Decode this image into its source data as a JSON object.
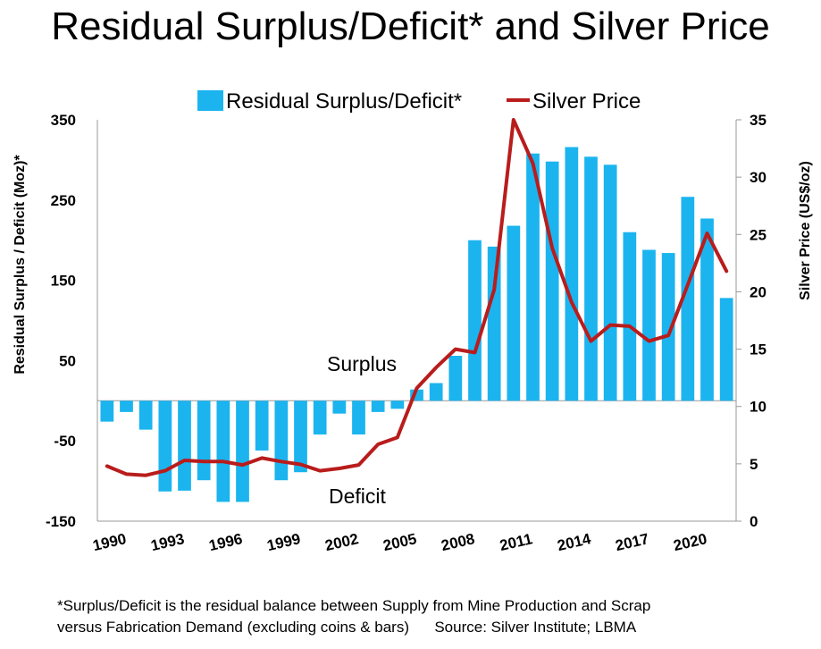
{
  "title": "Residual Surplus/Deficit* and Silver Price",
  "chart_data": {
    "type": "bar+line",
    "title": "Residual Surplus/Deficit* and Silver Price",
    "categories": [
      1990,
      1991,
      1992,
      1993,
      1994,
      1995,
      1996,
      1997,
      1998,
      1999,
      2000,
      2001,
      2002,
      2003,
      2004,
      2005,
      2006,
      2007,
      2008,
      2009,
      2010,
      2011,
      2012,
      2013,
      2014,
      2015,
      2016,
      2017,
      2018,
      2019,
      2020,
      2021,
      2022
    ],
    "x_tick_labels": [
      "1990",
      "1993",
      "1996",
      "1999",
      "2002",
      "2005",
      "2008",
      "2011",
      "2014",
      "2017",
      "2020"
    ],
    "series": [
      {
        "name": "Residual Surplus/Deficit*",
        "type": "bar",
        "axis": "left",
        "color": "#1BB4EF",
        "values": [
          -26,
          -14,
          -36,
          -113,
          -112,
          -99,
          -126,
          -126,
          -62,
          -99,
          -89,
          -42,
          -16,
          -42,
          -14,
          -10,
          14,
          22,
          56,
          200,
          192,
          218,
          308,
          298,
          316,
          304,
          294,
          210,
          188,
          184,
          254,
          227,
          128
        ]
      },
      {
        "name": "Silver Price",
        "type": "line",
        "axis": "right",
        "color": "#B91C1C",
        "values": [
          4.8,
          4.1,
          4.0,
          4.4,
          5.3,
          5.2,
          5.2,
          4.9,
          5.5,
          5.2,
          4.95,
          4.4,
          4.6,
          4.9,
          6.7,
          7.3,
          11.6,
          13.4,
          15.0,
          14.7,
          20.2,
          35.0,
          31.2,
          23.8,
          19.1,
          15.7,
          17.1,
          17.0,
          15.7,
          16.2,
          20.6,
          25.1,
          21.8
        ]
      }
    ],
    "y_left": {
      "label": "Residual Surplus / Deficit (Moz)*",
      "ylim": [
        -150,
        350
      ],
      "ticks": [
        "350",
        "250",
        "150",
        "50",
        "-50",
        "-150"
      ]
    },
    "y_right": {
      "label": "Silver Price (US$/oz)",
      "ylim": [
        0,
        35
      ],
      "ticks": [
        "35",
        "30",
        "25",
        "20",
        "15",
        "10",
        "5",
        "0"
      ]
    },
    "legend": {
      "position": "top",
      "entries": [
        "Residual Surplus/Deficit*",
        "Silver Price"
      ]
    },
    "annotations": {
      "surplus": "Surplus",
      "deficit": "Deficit"
    }
  },
  "footnote": {
    "line1": "*Surplus/Deficit is the residual balance between Supply from Mine Production and Scrap",
    "line2": "versus Fabrication Demand (excluding coins & bars)      Source: Silver Institute; LBMA"
  }
}
